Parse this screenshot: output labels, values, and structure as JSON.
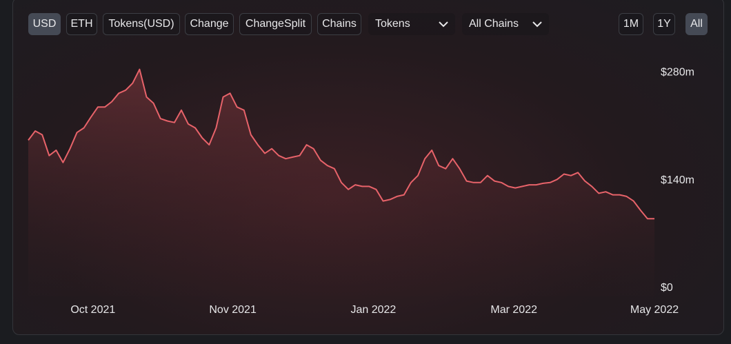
{
  "toolbar": {
    "buttons": [
      "USD",
      "ETH",
      "Tokens(USD)",
      "Change",
      "ChangeSplit",
      "Chains"
    ],
    "selects": [
      "Tokens",
      "All Chains"
    ],
    "ranges": [
      "1M",
      "1Y",
      "All"
    ]
  },
  "chart_data": {
    "type": "area",
    "color": "#e8636a",
    "values": [
      194,
      206,
      201,
      174,
      181,
      165,
      183,
      204,
      210,
      224,
      237,
      237,
      244,
      255,
      259,
      268,
      286,
      250,
      242,
      222,
      219,
      217,
      233,
      215,
      210,
      197,
      188,
      210,
      250,
      255,
      237,
      233,
      201,
      188,
      177,
      183,
      174,
      170,
      172,
      174,
      188,
      183,
      168,
      161,
      157,
      139,
      130,
      136,
      134,
      134,
      130,
      115,
      117,
      121,
      123,
      139,
      148,
      170,
      181,
      161,
      157,
      170,
      157,
      141,
      139,
      139,
      148,
      141,
      139,
      134,
      132,
      134,
      136,
      136,
      138,
      139,
      143,
      150,
      148,
      152,
      141,
      134,
      125,
      127,
      123,
      123,
      121,
      115,
      103,
      92,
      92
    ],
    "xlim": [
      0,
      90
    ],
    "xticks": [
      {
        "value": 9.3,
        "label": "Oct 2021"
      },
      {
        "value": 29.4,
        "label": "Nov 2021"
      },
      {
        "value": 49.6,
        "label": "Jan 2022"
      },
      {
        "value": 69.8,
        "label": "Mar 2022"
      },
      {
        "value": 90,
        "label": "May 2022"
      }
    ],
    "ylim": [
      0,
      300
    ],
    "yticks": [
      {
        "value": 0,
        "label": "$0"
      },
      {
        "value": 140,
        "label": "$140m"
      },
      {
        "value": 280,
        "label": "$280m"
      }
    ]
  }
}
